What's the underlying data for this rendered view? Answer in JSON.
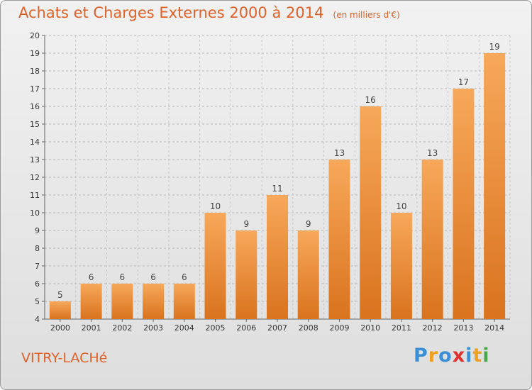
{
  "header": {
    "title": "Achats et Charges Externes 2000 à 2014",
    "unit": "(en milliers d'€)"
  },
  "commune": "VITRY-LACHé",
  "logo": {
    "text": "Proxiti",
    "letters": [
      {
        "char": "P",
        "color": "#3a8fd6"
      },
      {
        "char": "r",
        "color": "#f0a020"
      },
      {
        "char": "o",
        "color": "#3a8fd6"
      },
      {
        "char": "x",
        "color": "#e03030"
      },
      {
        "char": "i",
        "color": "#3a8fd6"
      },
      {
        "char": "t",
        "color": "#f0a020"
      },
      {
        "char": "i",
        "color": "#4aa84a"
      }
    ]
  },
  "colors": {
    "accent": "#e0622a",
    "bar_top": "#f7a85a",
    "bar_bottom": "#d9731e"
  },
  "chart_data": {
    "type": "bar",
    "title": "Achats et Charges Externes 2000 à 2014",
    "subtitle": "(en milliers d'€)",
    "categories": [
      "2000",
      "2001",
      "2002",
      "2003",
      "2004",
      "2005",
      "2006",
      "2007",
      "2008",
      "2009",
      "2010",
      "2011",
      "2012",
      "2013",
      "2014"
    ],
    "values": [
      5,
      6,
      6,
      6,
      6,
      10,
      9,
      11,
      9,
      13,
      16,
      10,
      13,
      17,
      19
    ],
    "ylim": [
      4,
      20
    ],
    "yticks": [
      4,
      5,
      6,
      7,
      8,
      9,
      10,
      11,
      12,
      13,
      14,
      15,
      16,
      17,
      18,
      19,
      20
    ],
    "grid": "horizontal-dashed",
    "legend": "none"
  }
}
